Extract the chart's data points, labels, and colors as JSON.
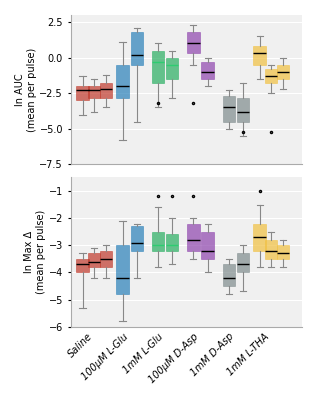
{
  "top_panel": {
    "ylabel": "ln AUC\n(mean per pulse)",
    "ylim": [
      -7.5,
      3.0
    ],
    "yticks": [
      2.5,
      0.0,
      -2.5,
      -5.0,
      -7.5
    ],
    "groups": [
      {
        "label": "Saline",
        "color": "#c0392b",
        "boxes": [
          {
            "whislo": -4.0,
            "q1": -3.0,
            "med": -2.3,
            "q3": -2.0,
            "whishi": -1.3,
            "fliers": []
          },
          {
            "whislo": -3.8,
            "q1": -2.8,
            "med": -2.3,
            "q3": -2.0,
            "whishi": -1.5,
            "fliers": []
          },
          {
            "whislo": -3.5,
            "q1": -2.8,
            "med": -2.2,
            "q3": -1.8,
            "whishi": -1.2,
            "fliers": []
          }
        ]
      },
      {
        "label": "100μM L-Glu",
        "color": "#2980b9",
        "boxes": [
          {
            "whislo": -5.8,
            "q1": -2.8,
            "med": -2.0,
            "q3": -0.5,
            "whishi": 1.1,
            "fliers": []
          },
          {
            "whislo": -4.5,
            "q1": -0.5,
            "med": 0.2,
            "q3": 1.8,
            "whishi": 2.1,
            "fliers": []
          }
        ]
      },
      {
        "label": "1mM L-Glu",
        "color": "#27ae60",
        "boxes": [
          {
            "whislo": -3.5,
            "q1": -1.8,
            "med": -0.3,
            "q3": 0.5,
            "whishi": 1.0,
            "fliers": [
              -3.2
            ]
          },
          {
            "whislo": -2.8,
            "q1": -1.5,
            "med": -0.5,
            "q3": 0.0,
            "whishi": 0.5,
            "fliers": []
          }
        ]
      },
      {
        "label": "100μM D-Asp",
        "color": "#8e44ad",
        "boxes": [
          {
            "whislo": -0.5,
            "q1": 0.3,
            "med": 1.0,
            "q3": 1.8,
            "whishi": 2.3,
            "fliers": [
              -3.2
            ]
          },
          {
            "whislo": -2.0,
            "q1": -1.5,
            "med": -1.0,
            "q3": -0.3,
            "whishi": -0.0,
            "fliers": []
          }
        ]
      },
      {
        "label": "1mM D-Asp",
        "color": "#7f8c8d",
        "boxes": [
          {
            "whislo": -5.0,
            "q1": -4.5,
            "med": -3.5,
            "q3": -2.7,
            "whishi": -2.3,
            "fliers": []
          },
          {
            "whislo": -5.5,
            "q1": -4.5,
            "med": -3.8,
            "q3": -2.8,
            "whishi": -1.8,
            "fliers": [
              -5.2
            ]
          }
        ]
      },
      {
        "label": "1mM L-THA",
        "color": "#f0c040",
        "boxes": [
          {
            "whislo": -1.5,
            "q1": -0.5,
            "med": 0.3,
            "q3": 0.8,
            "whishi": 1.5,
            "fliers": []
          },
          {
            "whislo": -2.5,
            "q1": -1.8,
            "med": -1.3,
            "q3": -0.8,
            "whishi": -0.5,
            "fliers": [
              -5.2
            ]
          },
          {
            "whislo": -2.2,
            "q1": -1.5,
            "med": -1.0,
            "q3": -0.5,
            "whishi": 0.0,
            "fliers": []
          }
        ]
      }
    ]
  },
  "bottom_panel": {
    "ylabel": "ln Max Δ\n(mean per pulse)",
    "ylim": [
      -6.0,
      -0.5
    ],
    "yticks": [
      -1,
      -2,
      -3,
      -4,
      -5,
      -6
    ],
    "groups": [
      {
        "label": "Saline",
        "color": "#c0392b",
        "boxes": [
          {
            "whislo": -5.3,
            "q1": -4.0,
            "med": -3.7,
            "q3": -3.5,
            "whishi": -3.3,
            "fliers": []
          },
          {
            "whislo": -4.2,
            "q1": -3.8,
            "med": -3.6,
            "q3": -3.3,
            "whishi": -3.1,
            "fliers": []
          },
          {
            "whislo": -4.2,
            "q1": -3.8,
            "med": -3.5,
            "q3": -3.2,
            "whishi": -3.0,
            "fliers": []
          }
        ]
      },
      {
        "label": "100μM L-Glu",
        "color": "#2980b9",
        "boxes": [
          {
            "whislo": -5.8,
            "q1": -4.8,
            "med": -4.2,
            "q3": -3.0,
            "whishi": -2.1,
            "fliers": []
          },
          {
            "whislo": -4.2,
            "q1": -3.2,
            "med": -2.9,
            "q3": -2.3,
            "whishi": -2.2,
            "fliers": []
          }
        ]
      },
      {
        "label": "1mM L-Glu",
        "color": "#27ae60",
        "boxes": [
          {
            "whislo": -3.8,
            "q1": -3.2,
            "med": -3.0,
            "q3": -2.5,
            "whishi": -1.6,
            "fliers": [
              -1.2
            ]
          },
          {
            "whislo": -3.7,
            "q1": -3.2,
            "med": -3.0,
            "q3": -2.6,
            "whishi": -2.0,
            "fliers": [
              -1.2
            ]
          }
        ]
      },
      {
        "label": "100μM D-Asp",
        "color": "#8e44ad",
        "boxes": [
          {
            "whislo": -3.5,
            "q1": -3.2,
            "med": -2.8,
            "q3": -2.2,
            "whishi": -2.0,
            "fliers": [
              -1.2
            ]
          },
          {
            "whislo": -4.0,
            "q1": -3.5,
            "med": -3.2,
            "q3": -2.5,
            "whishi": -2.2,
            "fliers": []
          }
        ]
      },
      {
        "label": "1mM D-Asp",
        "color": "#7f8c8d",
        "boxes": [
          {
            "whislo": -4.8,
            "q1": -4.5,
            "med": -4.2,
            "q3": -3.7,
            "whishi": -3.5,
            "fliers": []
          },
          {
            "whislo": -4.7,
            "q1": -4.0,
            "med": -3.7,
            "q3": -3.3,
            "whishi": -3.0,
            "fliers": []
          }
        ]
      },
      {
        "label": "1mM L-THA",
        "color": "#f0c040",
        "boxes": [
          {
            "whislo": -3.8,
            "q1": -3.2,
            "med": -2.7,
            "q3": -2.2,
            "whishi": -1.5,
            "fliers": [
              -1.0
            ]
          },
          {
            "whislo": -3.8,
            "q1": -3.5,
            "med": -3.2,
            "q3": -2.8,
            "whishi": -2.5,
            "fliers": []
          },
          {
            "whislo": -3.8,
            "q1": -3.5,
            "med": -3.3,
            "q3": -3.0,
            "whishi": -2.8,
            "fliers": []
          }
        ]
      }
    ]
  },
  "xlabel_groups": [
    "Saline",
    "100μM L-Glu",
    "1mM L-Glu",
    "100μM D-Asp",
    "1mM D-Asp",
    "1mM L-THA"
  ],
  "group_x_centers": [
    1.0,
    2.5,
    4.0,
    5.5,
    7.0,
    8.5
  ],
  "box_width": 0.55,
  "facecolor": "#f0f0f0"
}
